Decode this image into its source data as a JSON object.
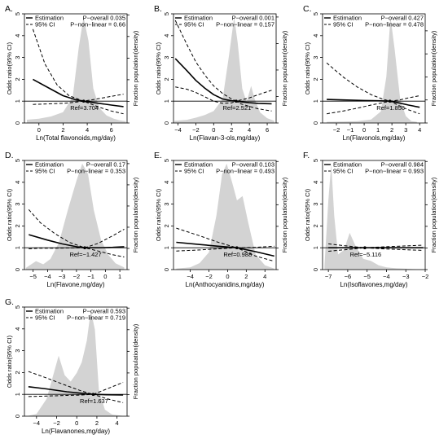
{
  "chart_data": [
    {
      "type": "line",
      "panel_label": "A.",
      "xlabel": "Ln(Total flavonoids,mg/day)",
      "ylabel": "Odds ratio(95% CI)",
      "y2label": "Fraction population(density)",
      "xlim": [
        -1.2,
        7.3
      ],
      "ylim": [
        0,
        5
      ],
      "xticks": [
        0,
        2,
        4,
        6
      ],
      "yticks": [
        0,
        1,
        2,
        3,
        4,
        5
      ],
      "legend": [
        "Estimation",
        "95% CI"
      ],
      "p_overall": "P−overall 0.035",
      "p_nonlinear": "P−non−linear = 0.66",
      "ref_label": "Ref=3.704",
      "ref": 3.704,
      "estimate": {
        "x": [
          -0.5,
          1,
          2,
          3,
          3.7,
          5,
          6,
          7
        ],
        "y": [
          2.0,
          1.55,
          1.25,
          1.07,
          1.0,
          0.9,
          0.82,
          0.75
        ]
      },
      "ci_upper": {
        "x": [
          -0.5,
          0.5,
          1.5,
          2.5,
          3.7,
          5,
          6,
          7
        ],
        "y": [
          4.3,
          2.7,
          1.75,
          1.25,
          1.0,
          1.12,
          1.22,
          1.32
        ]
      },
      "ci_lower": {
        "x": [
          -0.5,
          1,
          2,
          3,
          3.7,
          5,
          6,
          7
        ],
        "y": [
          0.85,
          0.88,
          0.9,
          0.95,
          1.0,
          0.72,
          0.55,
          0.42
        ]
      },
      "density": {
        "x": [
          -1,
          0,
          1,
          2,
          2.8,
          3.3,
          3.7,
          4.1,
          4.5,
          5,
          5.6,
          6.2,
          6.7,
          7.2
        ],
        "y": [
          0.15,
          0.2,
          0.3,
          0.5,
          1.2,
          3.5,
          4.9,
          3.8,
          1.6,
          0.7,
          0.35,
          0.2,
          0.12,
          0.08
        ]
      }
    },
    {
      "type": "line",
      "panel_label": "B.",
      "xlabel": "Ln(Flavan-3-ols,mg/day)",
      "ylabel": "Odds ratio(95% CI)",
      "y2label": "Fraction population(density)",
      "xlim": [
        -4.5,
        7
      ],
      "ylim": [
        0,
        5
      ],
      "xticks": [
        -4,
        -2,
        0,
        2,
        4,
        6
      ],
      "yticks": [
        0,
        1,
        2,
        3,
        4,
        5
      ],
      "legend": [
        "Estimation",
        "95% CI"
      ],
      "p_overall": "P−overall 0.001",
      "p_nonlinear": "P−non−linear = 0.157",
      "ref_label": "Ref=2.521",
      "ref": 2.521,
      "estimate": {
        "x": [
          -4.3,
          -3,
          -2,
          -1,
          0,
          1,
          2,
          2.52,
          3,
          4,
          5,
          6.5
        ],
        "y": [
          2.95,
          2.4,
          1.95,
          1.6,
          1.3,
          1.1,
          1.02,
          1.0,
          0.97,
          0.93,
          0.9,
          0.88
        ]
      },
      "ci_upper": {
        "x": [
          -4.3,
          -3,
          -2,
          -1,
          0,
          1,
          2,
          2.52,
          3,
          4,
          5,
          6.5
        ],
        "y": [
          4.7,
          3.6,
          2.8,
          2.2,
          1.7,
          1.35,
          1.1,
          1.0,
          1.05,
          1.15,
          1.3,
          1.5
        ]
      },
      "ci_lower": {
        "x": [
          -4.3,
          -3,
          -2,
          -1,
          0,
          1,
          2,
          2.52,
          3,
          4,
          5,
          6.5
        ],
        "y": [
          1.65,
          1.55,
          1.4,
          1.2,
          1.0,
          0.9,
          0.92,
          1.0,
          0.88,
          0.76,
          0.65,
          0.55
        ]
      },
      "density": {
        "x": [
          -4.4,
          -3,
          -2,
          -1,
          0,
          1,
          1.7,
          2.3,
          2.7,
          3.2,
          3.7,
          4.2,
          4.6,
          5.2,
          6,
          6.8
        ],
        "y": [
          0.08,
          0.12,
          0.2,
          0.3,
          0.45,
          0.9,
          2.5,
          4.0,
          3.0,
          1.3,
          0.8,
          1.4,
          0.9,
          0.4,
          0.18,
          0.08
        ]
      }
    },
    {
      "type": "line",
      "panel_label": "C.",
      "xlabel": "Ln(Flavonols,mg/day)",
      "ylabel": "Odds ratio(95% CI)",
      "y2label": "Fraction population(density)",
      "xlim": [
        -3,
        4.4
      ],
      "ylim": [
        0,
        5
      ],
      "xticks": [
        -2,
        -1,
        0,
        1,
        2,
        3,
        4
      ],
      "yticks": [
        0,
        1,
        2,
        3,
        4,
        5
      ],
      "legend": [
        "Estimation",
        "95% CI"
      ],
      "p_overall": "P−overall 0.427",
      "p_nonlinear": "P−non−linear = 0.478",
      "ref_label": "Ref=1.856",
      "ref": 1.856,
      "estimate": {
        "x": [
          -2.7,
          -1,
          0,
          1,
          1.86,
          2.5,
          3.2,
          4.0
        ],
        "y": [
          1.08,
          1.05,
          1.03,
          1.02,
          1.0,
          0.92,
          0.82,
          0.72
        ]
      },
      "ci_upper": {
        "x": [
          -2.7,
          -1.5,
          -0.5,
          0.5,
          1.3,
          1.86,
          2.5,
          3.2,
          4.0
        ],
        "y": [
          2.75,
          2.1,
          1.65,
          1.3,
          1.1,
          1.0,
          1.05,
          1.15,
          1.25
        ]
      },
      "ci_lower": {
        "x": [
          -2.7,
          -1.5,
          -0.5,
          0.5,
          1.3,
          1.86,
          2.5,
          3.2,
          4.0
        ],
        "y": [
          0.42,
          0.55,
          0.68,
          0.82,
          0.92,
          1.0,
          0.8,
          0.6,
          0.42
        ]
      },
      "density": {
        "x": [
          -2.7,
          -1.5,
          -0.5,
          0.5,
          1.2,
          1.6,
          1.9,
          2.2,
          2.6,
          3.0,
          3.4,
          3.8
        ],
        "y": [
          0.05,
          0.06,
          0.08,
          0.15,
          0.5,
          2.0,
          4.6,
          3.2,
          1.0,
          0.3,
          0.08,
          0.05
        ]
      }
    },
    {
      "type": "line",
      "panel_label": "D.",
      "xlabel": "Ln(Flavone,mg/day)",
      "ylabel": "Odds ratio(95% CI)",
      "y2label": "Fraction population(density)",
      "xlim": [
        -5.6,
        1.5
      ],
      "ylim": [
        0,
        5
      ],
      "xticks": [
        -5,
        -4,
        -3,
        -2,
        -1,
        0,
        1
      ],
      "yticks": [
        0,
        1,
        2,
        3,
        4,
        5
      ],
      "legend": [
        "Estimation",
        "95% CI"
      ],
      "p_overall": "P−overall 0.17",
      "p_nonlinear": "P−non−linear = 0.353",
      "ref_label": "Ref=−1.427",
      "ref": -1.427,
      "estimate": {
        "x": [
          -5.3,
          -4,
          -3,
          -2,
          -1.43,
          -0.5,
          0.5,
          1.3
        ],
        "y": [
          1.6,
          1.35,
          1.18,
          1.05,
          1.0,
          1.0,
          1.02,
          1.05
        ]
      },
      "ci_upper": {
        "x": [
          -5.3,
          -4.5,
          -3.5,
          -2.5,
          -1.43,
          -0.5,
          0.5,
          1.3
        ],
        "y": [
          2.75,
          2.15,
          1.65,
          1.25,
          1.0,
          1.2,
          1.55,
          1.85
        ]
      },
      "ci_lower": {
        "x": [
          -5.3,
          -4.5,
          -3.5,
          -2.5,
          -1.43,
          -0.5,
          0.5,
          1.3
        ],
        "y": [
          0.95,
          0.98,
          0.98,
          0.99,
          1.0,
          0.85,
          0.68,
          0.58
        ]
      },
      "density": {
        "x": [
          -5.5,
          -4.8,
          -4.3,
          -3.8,
          -3.2,
          -2.6,
          -2.0,
          -1.6,
          -1.2,
          -0.8,
          -0.3,
          0.2,
          0.7,
          1.3
        ],
        "y": [
          0.08,
          0.4,
          0.25,
          0.5,
          1.3,
          2.8,
          4.2,
          5.0,
          4.5,
          2.8,
          1.4,
          0.7,
          0.3,
          0.1
        ]
      }
    },
    {
      "type": "line",
      "panel_label": "E.",
      "xlabel": "Ln(Anthocyanidins,mg/day)",
      "ylabel": "Odds ratio(95% CI)",
      "y2label": "Fraction population(density)",
      "xlim": [
        -5.8,
        5.2
      ],
      "ylim": [
        0,
        5
      ],
      "xticks": [
        -4,
        -2,
        0,
        2,
        4
      ],
      "yticks": [
        0,
        1,
        2,
        3,
        4,
        5
      ],
      "legend": [
        "Estimation",
        "95% CI"
      ],
      "p_overall": "P−overall 0.103",
      "p_nonlinear": "P−non−linear = 0.493",
      "ref_label": "Ref=0.988",
      "ref": 0.988,
      "estimate": {
        "x": [
          -5.5,
          -3,
          -1,
          0.99,
          3,
          5
        ],
        "y": [
          1.25,
          1.15,
          1.07,
          1.0,
          0.82,
          0.62
        ]
      },
      "ci_upper": {
        "x": [
          -5.5,
          -3,
          -1,
          0.99,
          3,
          5
        ],
        "y": [
          1.9,
          1.55,
          1.25,
          1.0,
          1.02,
          1.07
        ]
      },
      "ci_lower": {
        "x": [
          -5.5,
          -3,
          -1,
          0.99,
          3,
          5
        ],
        "y": [
          0.85,
          0.9,
          0.95,
          1.0,
          0.62,
          0.38
        ]
      },
      "density": {
        "x": [
          -5.5,
          -4,
          -3,
          -2,
          -1.2,
          -0.6,
          -0.1,
          0.5,
          1.0,
          1.6,
          2.2,
          3,
          4,
          5
        ],
        "y": [
          0.05,
          0.1,
          0.3,
          0.8,
          2.5,
          4.4,
          4.9,
          4.0,
          3.2,
          3.4,
          2.2,
          0.7,
          0.2,
          0.05
        ]
      }
    },
    {
      "type": "line",
      "panel_label": "F.",
      "xlabel": "Ln(Isoflavones,mg/day)",
      "ylabel": "Odds ratio(95% CI)",
      "y2label": "Fraction population(density)",
      "xlim": [
        -7.3,
        -2
      ],
      "ylim": [
        0,
        5
      ],
      "xticks": [
        -7,
        -6,
        -5,
        -4,
        -3,
        -2
      ],
      "yticks": [
        0,
        1,
        2,
        3,
        4,
        5
      ],
      "legend": [
        "Estimation",
        "95% CI"
      ],
      "p_overall": "P−overall 0.984",
      "p_nonlinear": "P−non−linear = 0.993",
      "ref_label": "Ref=−5.116",
      "ref": -5.116,
      "estimate": {
        "x": [
          -7.0,
          -6,
          -5.12,
          -4,
          -2.1
        ],
        "y": [
          1.0,
          1.0,
          1.0,
          1.0,
          1.0
        ]
      },
      "ci_upper": {
        "x": [
          -7.0,
          -6,
          -5.12,
          -4,
          -2.1
        ],
        "y": [
          1.18,
          1.08,
          1.0,
          1.05,
          1.12
        ]
      },
      "ci_lower": {
        "x": [
          -7.0,
          -6,
          -5.12,
          -4,
          -2.1
        ],
        "y": [
          0.84,
          0.92,
          1.0,
          0.94,
          0.88
        ]
      },
      "density": {
        "x": [
          -7.2,
          -7.0,
          -6.85,
          -6.7,
          -6.5,
          -6.2,
          -5.9,
          -5.6,
          -5.2,
          -4.8,
          -4.4,
          -4.0,
          -3.5,
          -3.0,
          -2.5,
          -2.1
        ],
        "y": [
          0.2,
          3.2,
          4.9,
          2.5,
          0.7,
          0.9,
          1.7,
          1.1,
          0.5,
          0.4,
          0.2,
          0.1,
          0.06,
          0.04,
          0.02,
          0.01
        ]
      }
    },
    {
      "type": "line",
      "panel_label": "G.",
      "xlabel": "Ln(Flavanones,mg/day)",
      "ylabel": "Odds ratio(95% CI)",
      "y2label": "Fraction population(density)",
      "xlim": [
        -5.2,
        5
      ],
      "ylim": [
        0,
        5
      ],
      "xticks": [
        -4,
        -2,
        0,
        2,
        4
      ],
      "yticks": [
        0,
        1,
        2,
        3,
        4,
        5
      ],
      "legend": [
        "Estimation",
        "95% CI"
      ],
      "p_overall": "P−overall 0.593",
      "p_nonlinear": "P−non−linear = 0.719",
      "ref_label": "Ref=1.637",
      "ref": 1.637,
      "estimate": {
        "x": [
          -4.8,
          -3,
          -1,
          1.64,
          3,
          4.6
        ],
        "y": [
          1.35,
          1.25,
          1.12,
          1.0,
          0.98,
          0.97
        ]
      },
      "ci_upper": {
        "x": [
          -4.8,
          -3,
          -1,
          0.5,
          1.64,
          3,
          4.6
        ],
        "y": [
          2.05,
          1.75,
          1.4,
          1.15,
          1.0,
          1.25,
          1.55
        ]
      },
      "ci_lower": {
        "x": [
          -4.8,
          -3,
          -1,
          0.5,
          1.64,
          3,
          4.6
        ],
        "y": [
          0.9,
          0.92,
          0.95,
          0.97,
          1.0,
          0.8,
          0.62
        ]
      },
      "density": {
        "x": [
          -4.8,
          -4,
          -3,
          -2.4,
          -1.8,
          -1.2,
          -0.6,
          0,
          0.5,
          1,
          1.4,
          1.8,
          2.2,
          2.8,
          3.5,
          4.5
        ],
        "y": [
          0.02,
          0.1,
          0.8,
          1.8,
          2.8,
          1.9,
          1.6,
          2.0,
          2.5,
          3.5,
          4.9,
          4.0,
          1.2,
          0.3,
          0.08,
          0.02
        ]
      }
    }
  ]
}
